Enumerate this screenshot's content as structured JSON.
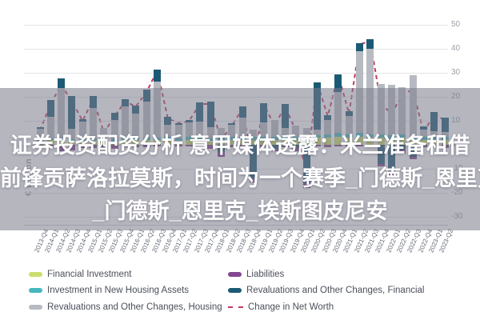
{
  "overlay": {
    "line1": "证券投资配资分析 意甲媒体透露：米兰准备租借",
    "line2": "前锋贡萨洛拉莫斯，时间为一个赛季_门德斯_恩里克_",
    "line3": "_门德斯_恩里克_埃斯图皮尼安"
  },
  "colors": {
    "financial_investment": "#cddd6e",
    "new_housing": "#45b8be",
    "reval_housing": "#b7bac1",
    "liabilities": "#83488f",
    "reval_financial": "#1c5a74",
    "net_worth_line": "#c23a60",
    "gridline": "#e4e4e9",
    "banner": "rgba(122,122,138,0.55)"
  },
  "chart_data": {
    "type": "bar",
    "subtype": "stacked-bar-with-dashed-line",
    "title": "",
    "ylabel": "€ Billion",
    "xlabel": "",
    "ylim": [
      -30,
      50
    ],
    "yticks": [
      50,
      40,
      30,
      20,
      10,
      0,
      -10,
      -20,
      -30
    ],
    "grid": true,
    "legend_position": "bottom",
    "categories": [
      "2013-Q4",
      "2014-Q1",
      "2014-Q2",
      "2014-Q3",
      "2014-Q4",
      "2015-Q1",
      "2015-Q2",
      "2015-Q3",
      "2015-Q4",
      "2016-Q1",
      "2016-Q2",
      "2016-Q3",
      "2016-Q4",
      "2017-Q1",
      "2017-Q2",
      "2017-Q3",
      "2017-Q4",
      "2018-Q1",
      "2018-Q2",
      "2018-Q3",
      "2018-Q4",
      "2019-Q1",
      "2019-Q2",
      "2019-Q3",
      "2019-Q4",
      "2020-Q1",
      "2020-Q2",
      "2020-Q3",
      "2020-Q4",
      "2021-Q1",
      "2021-Q2",
      "2021-Q3",
      "2021-Q4",
      "2022-Q1",
      "2022-Q2",
      "2022-Q3",
      "2022-Q4",
      "2023-Q1",
      "2023-Q2"
    ],
    "series": [
      {
        "name": "Financial Investment",
        "color": "#cddd6e",
        "values": [
          1.5,
          2,
          2,
          1.5,
          1.5,
          1.5,
          1.5,
          1.5,
          2,
          2,
          2,
          2,
          2,
          1.5,
          2,
          2,
          1.5,
          1.5,
          2,
          2,
          2,
          2,
          2,
          2,
          2,
          1.5,
          3,
          3,
          3.5,
          3,
          3.5,
          3,
          3,
          2.5,
          3,
          2,
          2,
          2,
          2
        ]
      },
      {
        "name": "Investment in New Housing Assets",
        "color": "#45b8be",
        "values": [
          0.8,
          0.8,
          0.8,
          0.8,
          0.8,
          0.8,
          1,
          1,
          1,
          1,
          1,
          1,
          1.2,
          1.2,
          1.2,
          1.3,
          1.3,
          1.5,
          1.5,
          1.5,
          1.5,
          1.5,
          1.5,
          1.5,
          1.5,
          1.5,
          1,
          1.5,
          1.5,
          1.5,
          1.5,
          1.5,
          1.5,
          1.5,
          1.5,
          1.5,
          1.2,
          1.2,
          1.2
        ]
      },
      {
        "name": "Revaluations and Other Changes, Housing",
        "color": "#b7bac1",
        "values": [
          4.5,
          9,
          21,
          4.5,
          7.5,
          13,
          4.5,
          8,
          13,
          10,
          15,
          23.5,
          5,
          5.8,
          6.3,
          6.5,
          4.7,
          4,
          5,
          8,
          3,
          6,
          7,
          3.5,
          4.5,
          4,
          2.5,
          6,
          17,
          7.5,
          34,
          35.5,
          21,
          21,
          19.5,
          25.5,
          3,
          2.5,
          2
        ]
      },
      {
        "name": "Revaluations and Other Changes, Financial",
        "color": "#1c5a74",
        "values": [
          0.5,
          7,
          4,
          13.5,
          1,
          5,
          -0.5,
          3,
          3,
          3.5,
          5,
          5,
          3.5,
          0.5,
          1,
          8,
          10.5,
          -3,
          0.5,
          4.5,
          -14,
          8,
          -1.5,
          10,
          -1,
          -16,
          19.5,
          2,
          7.5,
          2,
          3.5,
          4,
          -8,
          -11,
          -2,
          -5,
          1.5,
          8,
          6
        ]
      },
      {
        "name": "Liabilities",
        "color": "#83488f",
        "values": [
          -1.3,
          -1.3,
          -2.8,
          -2.3,
          -1.3,
          -1.3,
          -1.5,
          -1.5,
          -1,
          -1,
          -1,
          -0.5,
          -0.7,
          -0.5,
          -0.5,
          -0.5,
          -1.5,
          -2,
          -1,
          -1,
          -1.5,
          -1,
          -1,
          -1,
          -1.5,
          -2,
          -0.5,
          -1,
          -0.5,
          -1,
          -0.5,
          -0.5,
          -1,
          -1.5,
          -1.5,
          -1,
          -1,
          -1,
          -1.2
        ]
      }
    ],
    "line_series": {
      "name": "Change in Net Worth",
      "color": "#c23a60",
      "style": "dashed",
      "values": [
        6,
        17,
        25,
        18,
        10,
        19,
        5,
        12,
        18,
        16,
        22,
        31,
        11,
        9,
        10,
        17,
        17,
        2,
        8,
        15,
        -9,
        17,
        8,
        16,
        6,
        -11,
        26,
        12,
        29,
        13,
        42,
        43,
        17,
        13,
        21,
        23,
        5,
        13,
        10
      ]
    }
  },
  "legend": {
    "columns": [
      [
        {
          "label": "Financial Investment",
          "color": "#cddd6e",
          "swatch": "pill"
        },
        {
          "label": "Investment in New Housing Assets",
          "color": "#45b8be",
          "swatch": "pill"
        },
        {
          "label": "Revaluations and Other Changes, Housing",
          "color": "#b7bac1",
          "swatch": "pill"
        }
      ],
      [
        {
          "label": "Liabilities",
          "color": "#83488f",
          "swatch": "pill"
        },
        {
          "label": "Revaluations and Other Changes, Financial",
          "color": "#1c5a74",
          "swatch": "pill"
        },
        {
          "label": "Change in Net Worth",
          "color": "#c23a60",
          "swatch": "dash"
        }
      ]
    ]
  }
}
